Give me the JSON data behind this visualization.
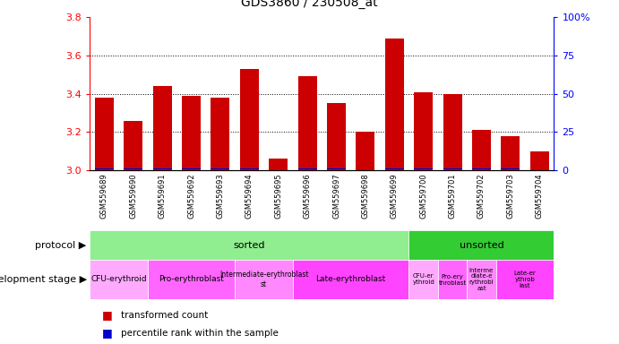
{
  "title": "GDS3860 / 230508_at",
  "samples": [
    "GSM559689",
    "GSM559690",
    "GSM559691",
    "GSM559692",
    "GSM559693",
    "GSM559694",
    "GSM559695",
    "GSM559696",
    "GSM559697",
    "GSM559698",
    "GSM559699",
    "GSM559700",
    "GSM559701",
    "GSM559702",
    "GSM559703",
    "GSM559704"
  ],
  "transformed_count": [
    3.38,
    3.26,
    3.44,
    3.39,
    3.38,
    3.53,
    3.06,
    3.49,
    3.35,
    3.2,
    3.69,
    3.41,
    3.4,
    3.21,
    3.18,
    3.1
  ],
  "percentile_rank": [
    5,
    5,
    7,
    5,
    5,
    7,
    3,
    7,
    5,
    3,
    7,
    5,
    5,
    5,
    4,
    3
  ],
  "ymin": 3.0,
  "ymax": 3.8,
  "yticks": [
    3.0,
    3.2,
    3.4,
    3.6,
    3.8
  ],
  "y2ticks": [
    0,
    25,
    50,
    75,
    100
  ],
  "bar_color": "#cc0000",
  "blue_color": "#0000cc",
  "protocol_sorted_color": "#90ee90",
  "protocol_unsorted_color": "#33cc33",
  "dev_colors_sorted": [
    "#ffaaff",
    "#ff66ff",
    "#ff88ff",
    "#ff44ff"
  ],
  "dev_colors_unsorted": [
    "#ffaaff",
    "#ff66ff",
    "#ff88ff",
    "#ff44ff"
  ],
  "dev_stages_sorted": [
    {
      "label": "CFU-erythroid",
      "start": 0,
      "end": 2
    },
    {
      "label": "Pro-erythroblast",
      "start": 2,
      "end": 5
    },
    {
      "label": "Intermediate-erythroblast\nst",
      "start": 5,
      "end": 7
    },
    {
      "label": "Late-erythroblast",
      "start": 7,
      "end": 11
    }
  ],
  "dev_stages_unsorted": [
    {
      "label": "CFU-er\nythroid",
      "start": 11,
      "end": 12
    },
    {
      "label": "Pro-ery\nthroblast",
      "start": 12,
      "end": 13
    },
    {
      "label": "Interme\ndiate-e\nrythrobl\nast",
      "start": 13,
      "end": 14
    },
    {
      "label": "Late-er\nythrob\nlast",
      "start": 14,
      "end": 16
    }
  ],
  "legend_items": [
    {
      "label": "transformed count",
      "color": "#cc0000"
    },
    {
      "label": "percentile rank within the sample",
      "color": "#0000cc"
    }
  ],
  "n_bars": 16,
  "sorted_count": 11,
  "unsorted_count": 5
}
